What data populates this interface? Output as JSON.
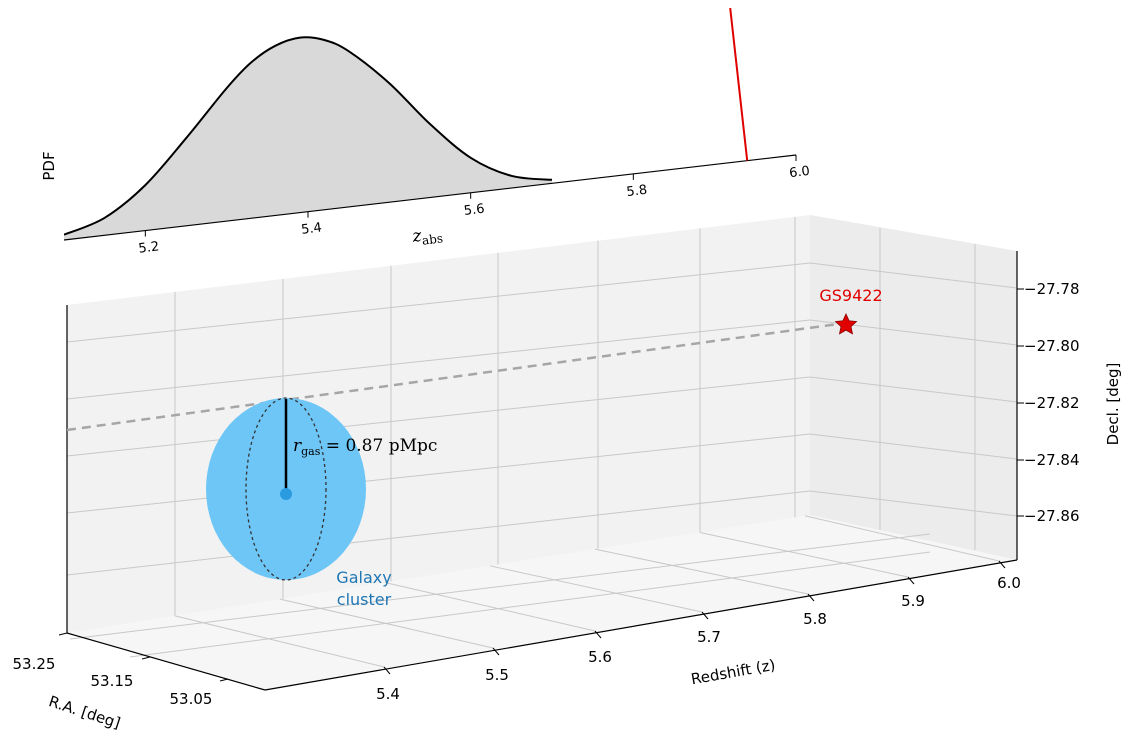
{
  "colors": {
    "pdf_fill": "#d9d9d9",
    "pdf_line": "#000000",
    "red_line": "#e00000",
    "sightline": "#a6a6a6",
    "sphere": "#6ec6f7",
    "sphere_center": "#2b9be0",
    "cluster_text": "#1f77b4",
    "galaxy_red": "#e00000",
    "grid": "#c8c8c8",
    "pane_back": "#f2f2f2",
    "pane_side": "#ececec",
    "pane_floor": "#f6f6f6"
  },
  "chart_data": [
    {
      "type": "area",
      "x_range": [
        5.1,
        6.0
      ],
      "x_ticks": [
        "5.2",
        "5.4",
        "5.6",
        "5.8",
        "6.0"
      ],
      "xlabel_main": "z",
      "xlabel_sub": "abs",
      "ylabel": "PDF",
      "series": [
        {
          "x": [
            5.1,
            5.15,
            5.2,
            5.25,
            5.3,
            5.33,
            5.36,
            5.39,
            5.42,
            5.45,
            5.5,
            5.55,
            5.6,
            5.65,
            5.7
          ],
          "y": [
            0.03,
            0.1,
            0.26,
            0.5,
            0.76,
            0.89,
            0.97,
            1.0,
            0.97,
            0.89,
            0.68,
            0.42,
            0.2,
            0.07,
            0.02
          ]
        }
      ],
      "marker_line_x": 5.94
    },
    {
      "type": "scatter",
      "x_label": "Redshift (z)",
      "x_ticks": [
        "5.4",
        "5.5",
        "5.6",
        "5.7",
        "5.8",
        "5.9",
        "6.0"
      ],
      "y_label": "R.A. [deg]",
      "y_ticks": [
        "53.25",
        "53.15",
        "53.05"
      ],
      "z_label": "Decl. [deg]",
      "z_ticks": [
        "−27.78",
        "−27.80",
        "−27.82",
        "−27.84",
        "−27.86"
      ],
      "galaxy": {
        "name": "GS9422",
        "redshift": 5.94
      },
      "cluster": {
        "label_line1": "Galaxy",
        "label_line2": "cluster",
        "radius_text_main": "r",
        "radius_text_sub": "gas",
        "radius_text_value": " = 0.87 pMpc"
      }
    }
  ]
}
